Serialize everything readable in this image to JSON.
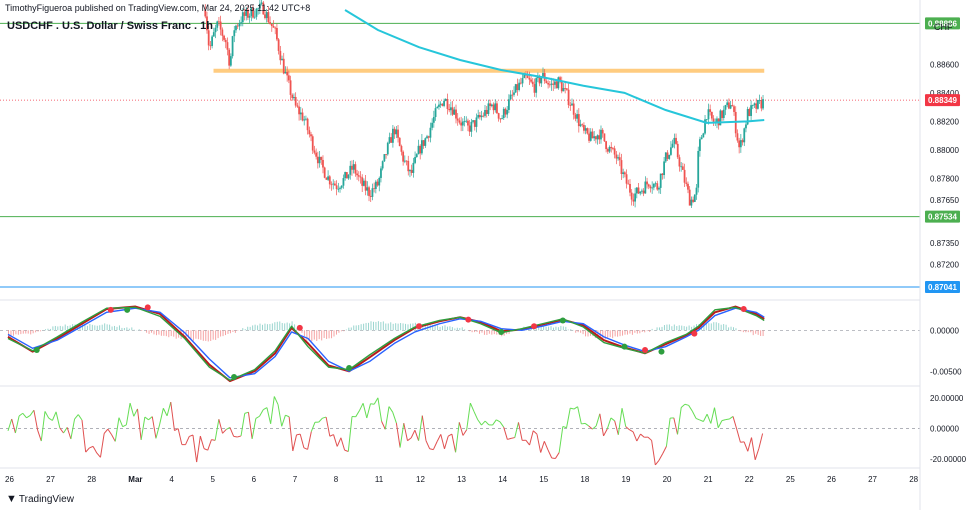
{
  "header": {
    "published": "TimothyFigueroa published on TradingView.com, Mar 24, 2025 11:42 UTC+8",
    "symbol_title": "USDCHF . U.S. Dollar / Swiss Franc . 1h",
    "currency": "CHF",
    "brand": "TradingView"
  },
  "colors": {
    "up": "#26a69a",
    "down": "#ef5350",
    "ema": "#26c6da",
    "zone": "#ffcc80",
    "level_green": "#4caf50",
    "level_blue": "#2196f3",
    "price_red": "#f23645",
    "osc_green": "#2e9e3e",
    "osc_blue": "#2962ff",
    "osc_red": "#b71c1c",
    "osc2_green": "#66dd55",
    "osc2_red": "#e05050"
  },
  "chart_data": [
    {
      "type": "candlestick",
      "pane": "price",
      "y_ticks": [
        0.886,
        0.884,
        0.882,
        0.88,
        0.878,
        0.8765,
        0.8735,
        0.872
      ],
      "y_tick_labels": [
        "0.88600",
        "0.88400",
        "0.88200",
        "0.88000",
        "0.87800",
        "0.87650",
        "0.87350",
        "0.87200"
      ],
      "ylim": [
        0.8695,
        0.8905
      ],
      "x_tick_labels": [
        "26",
        "27",
        "28",
        "Mar",
        "4",
        "5",
        "6",
        "7",
        "8",
        "11",
        "12",
        "13",
        "14",
        "15",
        "18",
        "19",
        "20",
        "21",
        "22",
        "25",
        "26",
        "27",
        "28"
      ],
      "x_tick_positions": [
        0,
        1,
        2,
        3,
        4,
        5,
        6,
        7,
        8,
        9,
        10,
        11,
        12,
        13,
        14,
        15,
        16,
        17,
        18,
        19,
        20,
        21,
        22
      ],
      "close_path": [
        [
          4.8,
          0.8898
        ],
        [
          4.9,
          0.887
        ],
        [
          5.0,
          0.888
        ],
        [
          5.1,
          0.8888
        ],
        [
          5.2,
          0.8882
        ],
        [
          5.3,
          0.8876
        ],
        [
          5.4,
          0.886
        ],
        [
          5.5,
          0.8885
        ],
        [
          5.7,
          0.8893
        ],
        [
          6.0,
          0.8897
        ],
        [
          6.2,
          0.89
        ],
        [
          6.5,
          0.8882
        ],
        [
          6.7,
          0.8858
        ],
        [
          6.85,
          0.8843
        ],
        [
          7.0,
          0.883
        ],
        [
          7.2,
          0.8822
        ],
        [
          7.4,
          0.8805
        ],
        [
          7.6,
          0.879
        ],
        [
          7.8,
          0.878
        ],
        [
          8.0,
          0.8775
        ],
        [
          8.2,
          0.878
        ],
        [
          8.4,
          0.8788
        ],
        [
          8.6,
          0.8776
        ],
        [
          8.8,
          0.877
        ],
        [
          9.0,
          0.8776
        ],
        [
          9.2,
          0.8798
        ],
        [
          9.4,
          0.8815
        ],
        [
          9.6,
          0.8795
        ],
        [
          9.8,
          0.8782
        ],
        [
          10.0,
          0.88
        ],
        [
          10.2,
          0.881
        ],
        [
          10.4,
          0.8825
        ],
        [
          10.6,
          0.8836
        ],
        [
          10.8,
          0.883
        ],
        [
          11.0,
          0.882
        ],
        [
          11.2,
          0.8815
        ],
        [
          11.4,
          0.882
        ],
        [
          11.6,
          0.8826
        ],
        [
          11.8,
          0.8832
        ],
        [
          12.0,
          0.8822
        ],
        [
          12.2,
          0.8834
        ],
        [
          12.4,
          0.8844
        ],
        [
          12.6,
          0.885
        ],
        [
          12.8,
          0.8844
        ],
        [
          13.0,
          0.8852
        ],
        [
          13.2,
          0.8845
        ],
        [
          13.4,
          0.8848
        ],
        [
          13.6,
          0.8838
        ],
        [
          13.8,
          0.8826
        ],
        [
          14.0,
          0.8812
        ],
        [
          14.2,
          0.8808
        ],
        [
          14.4,
          0.8812
        ],
        [
          14.6,
          0.8802
        ],
        [
          14.8,
          0.8795
        ],
        [
          15.0,
          0.878
        ],
        [
          15.2,
          0.8768
        ],
        [
          15.4,
          0.8772
        ],
        [
          15.6,
          0.8778
        ],
        [
          15.8,
          0.8774
        ],
        [
          16.0,
          0.8794
        ],
        [
          16.2,
          0.8806
        ],
        [
          16.4,
          0.8785
        ],
        [
          16.6,
          0.8764
        ],
        [
          16.75,
          0.877
        ],
        [
          16.8,
          0.88
        ],
        [
          17.0,
          0.8826
        ],
        [
          17.2,
          0.8818
        ],
        [
          17.4,
          0.8826
        ],
        [
          17.6,
          0.8834
        ],
        [
          17.8,
          0.88
        ],
        [
          18.0,
          0.8826
        ],
        [
          18.2,
          0.883
        ],
        [
          18.4,
          0.8834
        ]
      ],
      "ema": [
        [
          8.2,
          0.8898
        ],
        [
          9.0,
          0.8884
        ],
        [
          10.0,
          0.8872
        ],
        [
          11.0,
          0.8863
        ],
        [
          12.0,
          0.8856
        ],
        [
          13.0,
          0.8851
        ],
        [
          14.0,
          0.8845
        ],
        [
          15.0,
          0.884
        ],
        [
          16.0,
          0.8828
        ],
        [
          17.0,
          0.8819
        ],
        [
          18.0,
          0.882
        ],
        [
          18.4,
          0.8821
        ]
      ],
      "supply_zone": {
        "from_x": 5.0,
        "to_x": 18.4,
        "y": 0.88555
      },
      "horizontal_levels": [
        {
          "value": 0.88886,
          "label": "0.88886",
          "color_key": "level_green"
        },
        {
          "value": 0.87534,
          "label": "0.87534",
          "color_key": "level_green"
        },
        {
          "value": 0.87041,
          "label": "0.87041",
          "color_key": "level_blue"
        },
        {
          "value": 0.88349,
          "label": "0.88349",
          "color_key": "price_red",
          "dotted": true
        }
      ]
    },
    {
      "type": "line",
      "pane": "oscillator",
      "y_tick_labels": [
        "0.00000",
        "-0.00500"
      ],
      "y_ticks": [
        0.0,
        -0.005
      ],
      "ylim": [
        -0.0068,
        0.0037
      ],
      "series": [
        {
          "color_key": "osc_green",
          "values": [
            [
              0,
              -0.001
            ],
            [
              0.6,
              -0.0025
            ],
            [
              1.2,
              -0.0008
            ],
            [
              1.8,
              0.001
            ],
            [
              2.4,
              0.0027
            ],
            [
              3.1,
              0.0028
            ],
            [
              3.7,
              0.0017
            ],
            [
              4.3,
              -0.001
            ],
            [
              4.9,
              -0.0045
            ],
            [
              5.4,
              -0.0061
            ],
            [
              6.0,
              -0.0048
            ],
            [
              6.5,
              -0.0025
            ],
            [
              6.9,
              0.0005
            ],
            [
              7.3,
              -0.002
            ],
            [
              7.8,
              -0.0045
            ],
            [
              8.3,
              -0.0048
            ],
            [
              8.8,
              -0.003
            ],
            [
              9.4,
              -0.001
            ],
            [
              9.9,
              0.0004
            ],
            [
              10.5,
              0.0012
            ],
            [
              11.0,
              0.0016
            ],
            [
              11.5,
              0.0008
            ],
            [
              12.0,
              -0.0003
            ],
            [
              12.5,
              0.0002
            ],
            [
              13.0,
              0.0008
            ],
            [
              13.5,
              0.0014
            ],
            [
              14.0,
              0.0004
            ],
            [
              14.5,
              -0.0015
            ],
            [
              15.0,
              -0.0022
            ],
            [
              15.5,
              -0.0028
            ],
            [
              16.0,
              -0.0015
            ],
            [
              16.5,
              -0.0005
            ],
            [
              16.8,
              0.0005
            ],
            [
              17.2,
              0.0025
            ],
            [
              17.7,
              0.0028
            ],
            [
              18.2,
              0.0018
            ],
            [
              18.4,
              0.0012
            ]
          ]
        },
        {
          "color_key": "osc_blue",
          "values": [
            [
              0,
              -0.0005
            ],
            [
              0.6,
              -0.0022
            ],
            [
              1.2,
              -0.0012
            ],
            [
              1.8,
              0.0005
            ],
            [
              2.4,
              0.0022
            ],
            [
              3.1,
              0.0027
            ],
            [
              3.7,
              0.0022
            ],
            [
              4.3,
              -0.0003
            ],
            [
              4.9,
              -0.0035
            ],
            [
              5.4,
              -0.0058
            ],
            [
              6.0,
              -0.0053
            ],
            [
              6.5,
              -0.0032
            ],
            [
              6.9,
              -0.0002
            ],
            [
              7.3,
              -0.001
            ],
            [
              7.8,
              -0.0038
            ],
            [
              8.3,
              -0.005
            ],
            [
              8.8,
              -0.0038
            ],
            [
              9.4,
              -0.0016
            ],
            [
              9.9,
              -0.0002
            ],
            [
              10.5,
              0.0008
            ],
            [
              11.0,
              0.0014
            ],
            [
              11.5,
              0.0011
            ],
            [
              12.0,
              0.0002
            ],
            [
              12.5,
              0.0
            ],
            [
              13.0,
              0.0005
            ],
            [
              13.5,
              0.0011
            ],
            [
              14.0,
              0.0008
            ],
            [
              14.5,
              -0.0008
            ],
            [
              15.0,
              -0.0018
            ],
            [
              15.5,
              -0.0026
            ],
            [
              16.0,
              -0.002
            ],
            [
              16.5,
              -0.0008
            ],
            [
              16.8,
              0.0
            ],
            [
              17.2,
              0.0018
            ],
            [
              17.7,
              0.0027
            ],
            [
              18.2,
              0.0022
            ],
            [
              18.4,
              0.0016
            ]
          ]
        },
        {
          "color_key": "osc_red",
          "values": [
            [
              0,
              -0.0008
            ],
            [
              0.6,
              -0.0026
            ],
            [
              1.2,
              -0.001
            ],
            [
              1.8,
              0.0008
            ],
            [
              2.4,
              0.0026
            ],
            [
              3.1,
              0.0029
            ],
            [
              3.7,
              0.002
            ],
            [
              4.3,
              -0.0008
            ],
            [
              4.9,
              -0.0042
            ],
            [
              5.4,
              -0.0062
            ],
            [
              6.0,
              -0.005
            ],
            [
              6.5,
              -0.0028
            ],
            [
              6.9,
              0.0003
            ],
            [
              7.3,
              -0.0016
            ],
            [
              7.8,
              -0.0043
            ],
            [
              8.3,
              -0.005
            ],
            [
              8.8,
              -0.0033
            ],
            [
              9.4,
              -0.0012
            ],
            [
              9.9,
              0.0003
            ],
            [
              10.5,
              0.0011
            ],
            [
              11.0,
              0.0016
            ],
            [
              11.5,
              0.001
            ],
            [
              12.0,
              -0.0001
            ],
            [
              12.5,
              0.0001
            ],
            [
              13.0,
              0.0007
            ],
            [
              13.5,
              0.0013
            ],
            [
              14.0,
              0.0006
            ],
            [
              14.5,
              -0.0012
            ],
            [
              15.0,
              -0.0021
            ],
            [
              15.5,
              -0.0028
            ],
            [
              16.0,
              -0.0017
            ],
            [
              16.5,
              -0.0006
            ],
            [
              16.8,
              0.0003
            ],
            [
              17.2,
              0.0022
            ],
            [
              17.7,
              0.0029
            ],
            [
              18.2,
              0.002
            ],
            [
              18.4,
              0.0014
            ]
          ]
        }
      ],
      "cross_markers": [
        {
          "x": 0.7,
          "y": -0.0024,
          "color_key": "osc_green"
        },
        {
          "x": 2.5,
          "y": 0.0025,
          "color_key": "price_red"
        },
        {
          "x": 2.9,
          "y": 0.0025,
          "color_key": "osc_green"
        },
        {
          "x": 3.4,
          "y": 0.0028,
          "color_key": "price_red"
        },
        {
          "x": 5.5,
          "y": -0.0057,
          "color_key": "osc_green"
        },
        {
          "x": 7.1,
          "y": 0.0003,
          "color_key": "price_red"
        },
        {
          "x": 8.3,
          "y": -0.0046,
          "color_key": "osc_green"
        },
        {
          "x": 10.0,
          "y": 0.0005,
          "color_key": "price_red"
        },
        {
          "x": 11.2,
          "y": 0.0013,
          "color_key": "price_red"
        },
        {
          "x": 12.0,
          "y": -0.0002,
          "color_key": "osc_green"
        },
        {
          "x": 12.8,
          "y": 0.0005,
          "color_key": "price_red"
        },
        {
          "x": 13.5,
          "y": 0.0012,
          "color_key": "osc_green"
        },
        {
          "x": 15.0,
          "y": -0.002,
          "color_key": "osc_green"
        },
        {
          "x": 15.5,
          "y": -0.0024,
          "color_key": "price_red"
        },
        {
          "x": 15.9,
          "y": -0.0026,
          "color_key": "osc_green"
        },
        {
          "x": 16.7,
          "y": -0.0004,
          "color_key": "price_red"
        },
        {
          "x": 17.9,
          "y": 0.0026,
          "color_key": "price_red"
        }
      ]
    },
    {
      "type": "line",
      "pane": "momentum",
      "y_tick_labels": [
        "20.00000",
        "0.00000",
        "-20.00000"
      ],
      "y_ticks": [
        20,
        0,
        -20
      ],
      "ylim": [
        -26,
        28
      ],
      "zero_line": true
    }
  ]
}
